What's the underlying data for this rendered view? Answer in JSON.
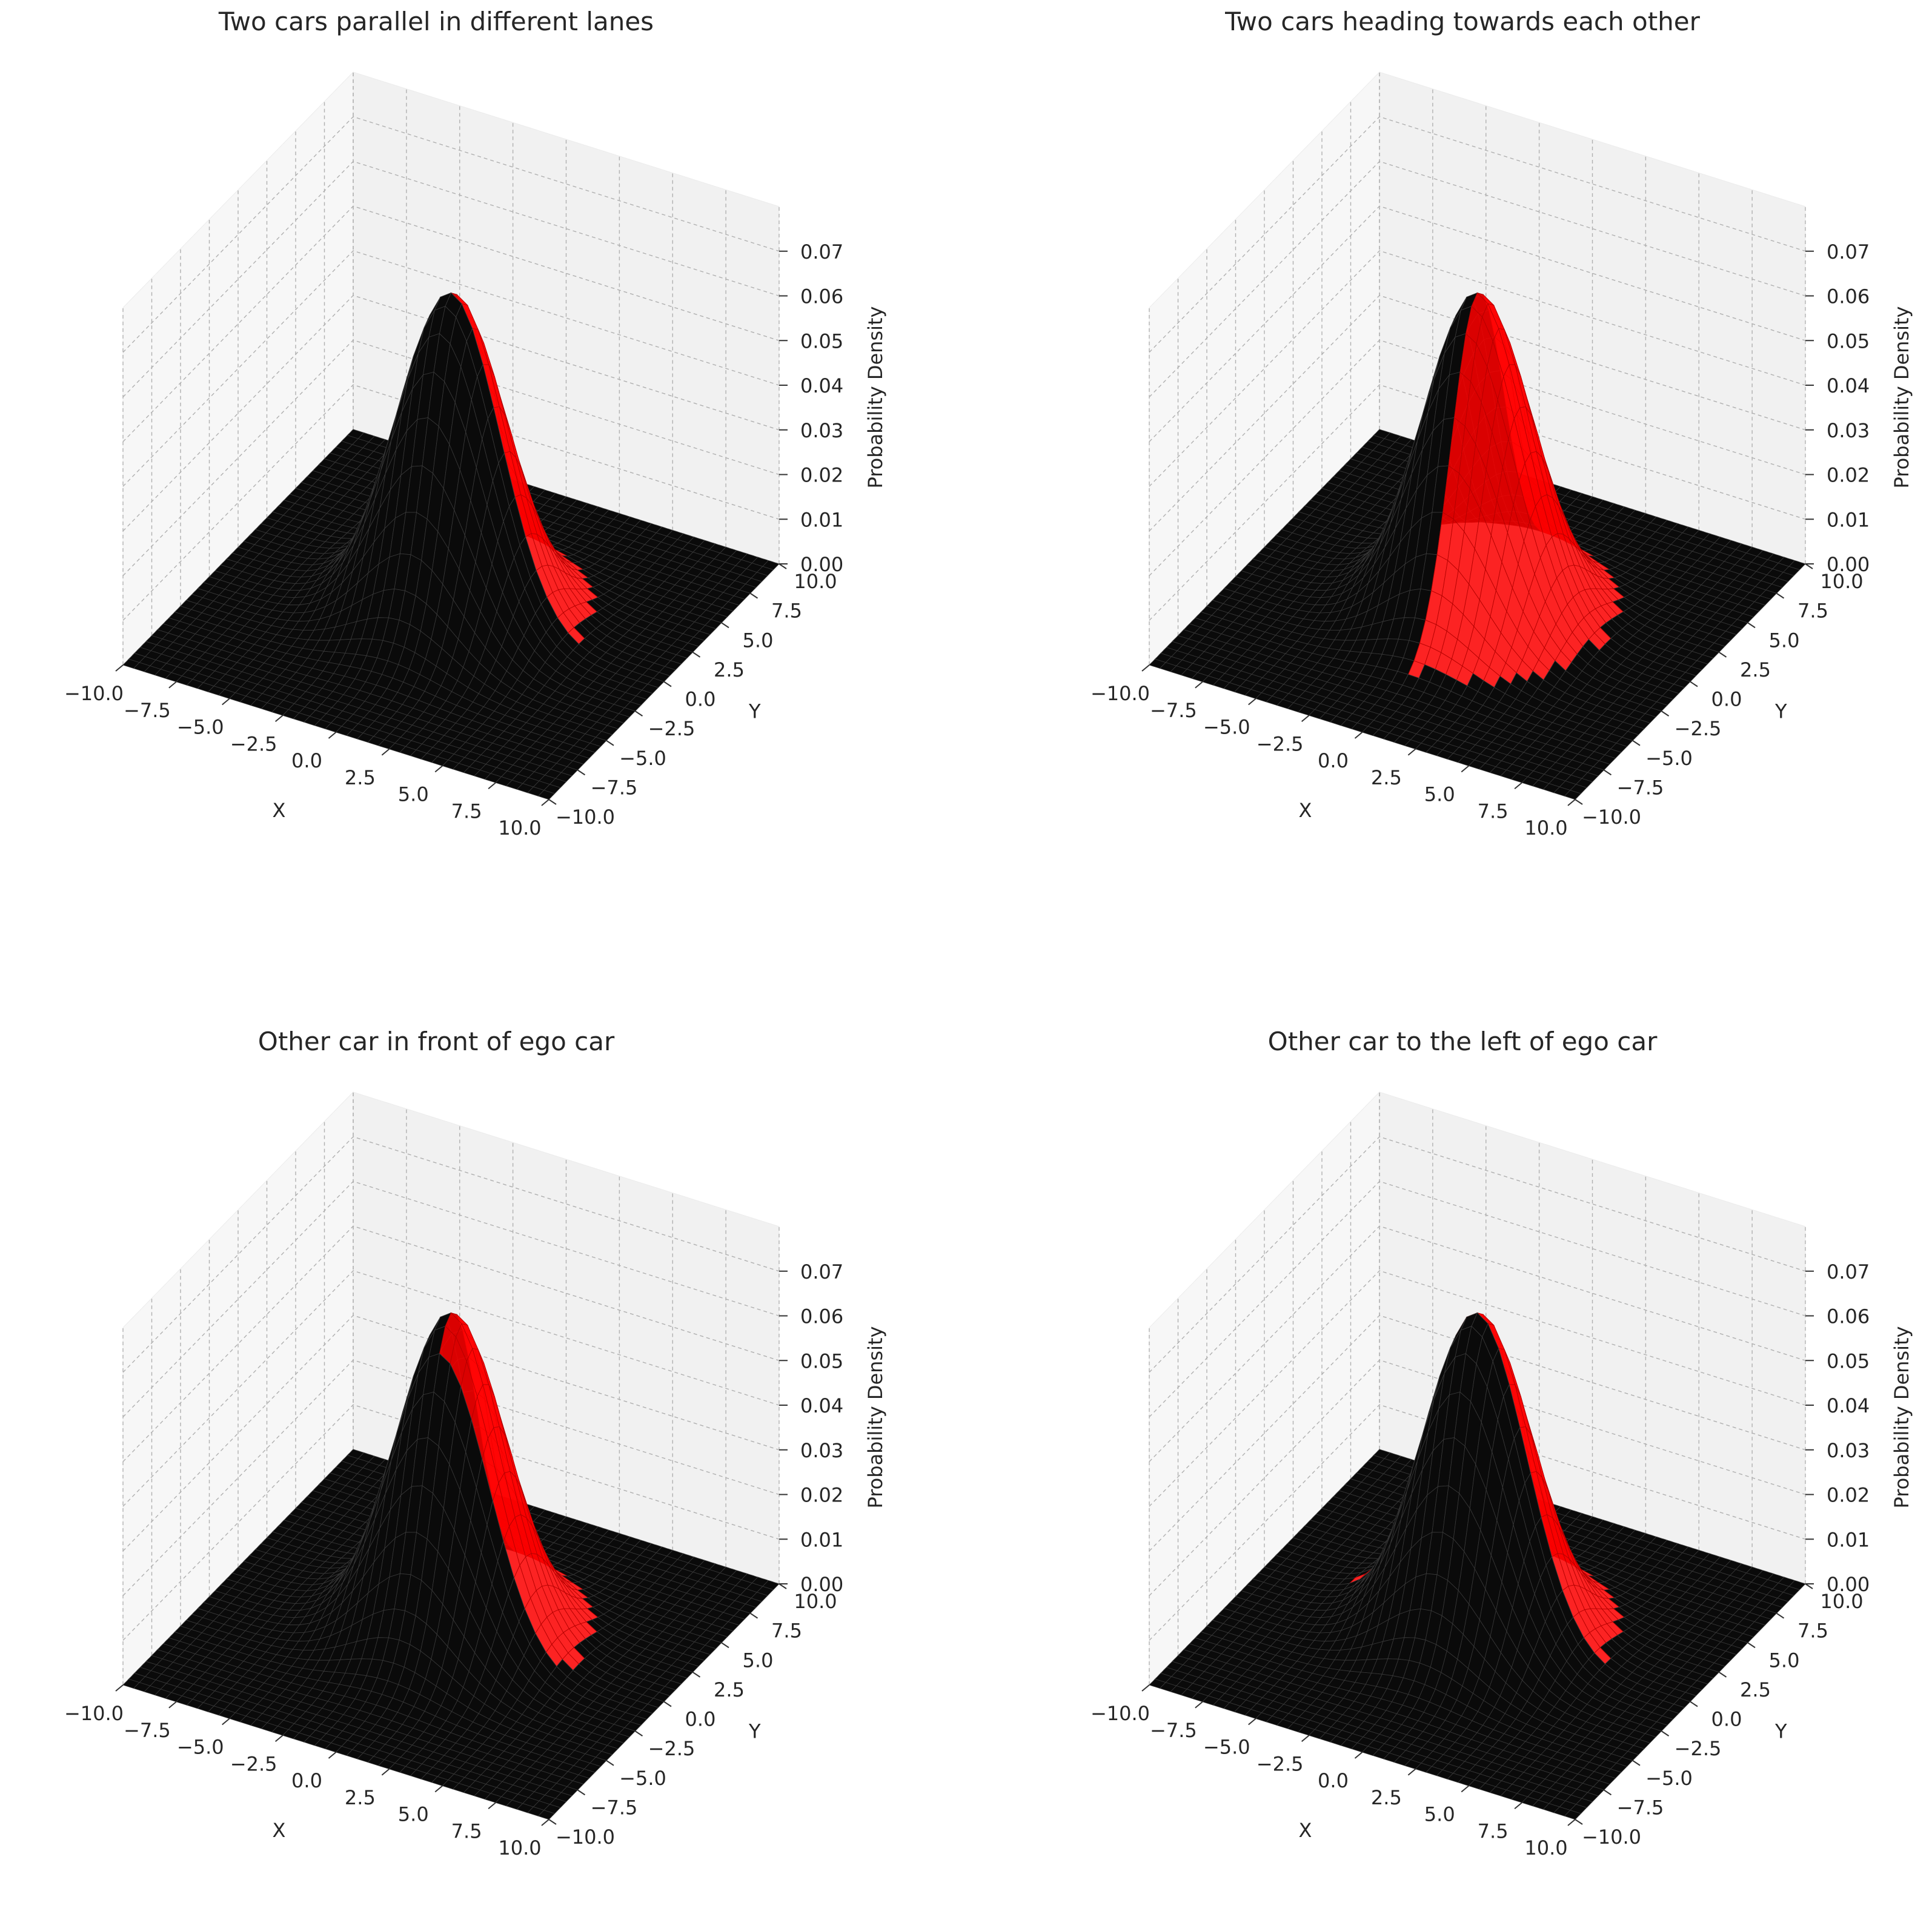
{
  "figure": {
    "background": "#ffffff"
  },
  "colors": {
    "surface": "#000000",
    "highlight": "#ff0000",
    "pane_left": "#f7f7f7",
    "pane_right": "#f1f1f1",
    "pane_floor": "#e8e8e8",
    "grid": "#b0b0b0",
    "text": "#262626"
  },
  "chart_data": [
    {
      "type": "surface3d",
      "title": "Two cars parallel in different lanes",
      "xlabel": "X",
      "ylabel": "Y",
      "zlabel": "Probability Density",
      "xlim": [
        -10,
        10
      ],
      "ylim": [
        -10,
        10
      ],
      "zlim": [
        0,
        0.08
      ],
      "x_ticks": [
        "−10.0",
        "−7.5",
        "−5.0",
        "−2.5",
        "0.0",
        "2.5",
        "5.0",
        "7.5",
        "10.0"
      ],
      "y_ticks": [
        "−10.0",
        "−7.5",
        "−5.0",
        "−2.5",
        "0.0",
        "2.5",
        "5.0",
        "7.5",
        "10.0"
      ],
      "z_ticks": [
        "0.00",
        "0.01",
        "0.02",
        "0.03",
        "0.04",
        "0.05",
        "0.06",
        "0.07"
      ],
      "peak": 0.072,
      "highlight_region": "x > 0, y > 0"
    },
    {
      "type": "surface3d",
      "title": "Two cars heading towards each other",
      "xlabel": "X",
      "ylabel": "Y",
      "zlabel": "Probability Density",
      "xlim": [
        -10,
        10
      ],
      "ylim": [
        -10,
        10
      ],
      "zlim": [
        0,
        0.08
      ],
      "x_ticks": [
        "−10.0",
        "−7.5",
        "−5.0",
        "−2.5",
        "0.0",
        "2.5",
        "5.0",
        "7.5",
        "10.0"
      ],
      "y_ticks": [
        "−10.0",
        "−7.5",
        "−5.0",
        "−2.5",
        "0.0",
        "2.5",
        "5.0",
        "7.5",
        "10.0"
      ],
      "z_ticks": [
        "0.00",
        "0.01",
        "0.02",
        "0.03",
        "0.04",
        "0.05",
        "0.06",
        "0.07"
      ],
      "peak": 0.072,
      "highlight_region": "x > 0"
    },
    {
      "type": "surface3d",
      "title": "Other car in front of ego car",
      "xlabel": "X",
      "ylabel": "Y",
      "zlabel": "Probability Density",
      "xlim": [
        -10,
        10
      ],
      "ylim": [
        -10,
        10
      ],
      "zlim": [
        0,
        0.08
      ],
      "x_ticks": [
        "−10.0",
        "−7.5",
        "−5.0",
        "−2.5",
        "0.0",
        "2.5",
        "5.0",
        "7.5",
        "10.0"
      ],
      "y_ticks": [
        "−10.0",
        "−7.5",
        "−5.0",
        "−2.5",
        "0.0",
        "2.5",
        "5.0",
        "7.5",
        "10.0"
      ],
      "z_ticks": [
        "0.00",
        "0.01",
        "0.02",
        "0.03",
        "0.04",
        "0.05",
        "0.06",
        "0.07"
      ],
      "peak": 0.072,
      "highlight_region": "x > 0, y > -1"
    },
    {
      "type": "surface3d",
      "title": "Other car to the left of ego car",
      "xlabel": "X",
      "ylabel": "Y",
      "zlabel": "Probability Density",
      "xlim": [
        -10,
        10
      ],
      "ylim": [
        -10,
        10
      ],
      "zlim": [
        0,
        0.08
      ],
      "x_ticks": [
        "−10.0",
        "−7.5",
        "−5.0",
        "−2.5",
        "0.0",
        "2.5",
        "5.0",
        "7.5",
        "10.0"
      ],
      "y_ticks": [
        "−10.0",
        "−7.5",
        "−5.0",
        "−2.5",
        "0.0",
        "2.5",
        "5.0",
        "7.5",
        "10.0"
      ],
      "z_ticks": [
        "0.00",
        "0.01",
        "0.02",
        "0.03",
        "0.04",
        "0.05",
        "0.06",
        "0.07"
      ],
      "peak": 0.072,
      "highlight_region": "y > 0"
    }
  ]
}
